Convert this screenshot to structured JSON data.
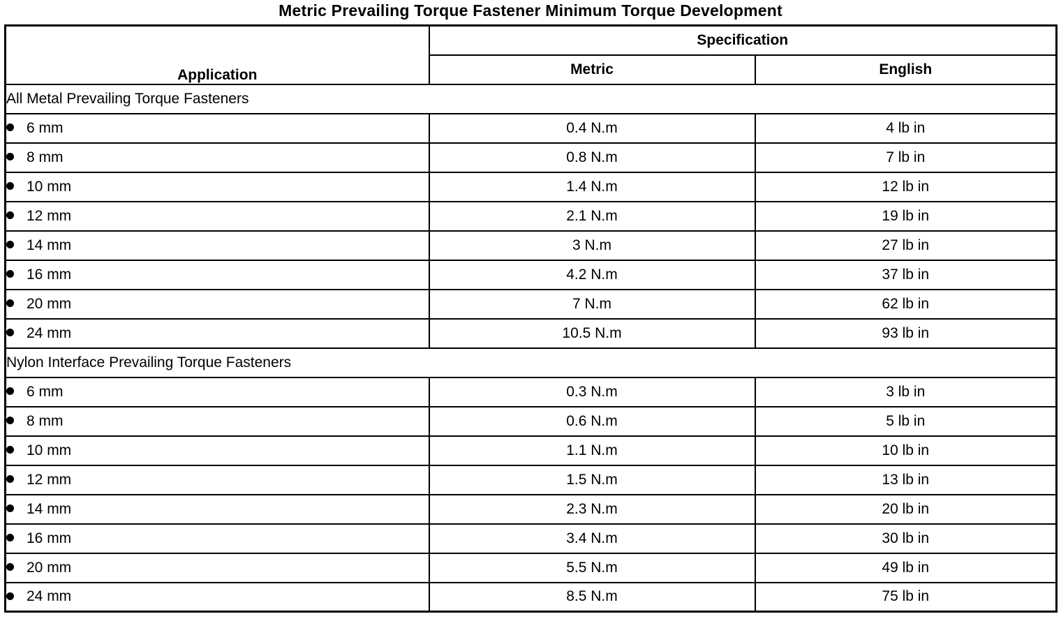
{
  "page": {
    "title": "Metric Prevailing Torque Fastener Minimum Torque Development"
  },
  "table": {
    "headers": {
      "application": "Application",
      "specification": "Specification",
      "metric": "Metric",
      "english": "English"
    },
    "sections": [
      {
        "label": "All Metal Prevailing Torque Fasteners",
        "rows": [
          {
            "application": "6 mm",
            "metric": "0.4 N.m",
            "english": "4 lb in"
          },
          {
            "application": "8 mm",
            "metric": "0.8 N.m",
            "english": "7 lb in"
          },
          {
            "application": "10 mm",
            "metric": "1.4 N.m",
            "english": "12 lb in"
          },
          {
            "application": "12 mm",
            "metric": "2.1 N.m",
            "english": "19 lb in"
          },
          {
            "application": "14 mm",
            "metric": "3 N.m",
            "english": "27 lb in"
          },
          {
            "application": "16 mm",
            "metric": "4.2 N.m",
            "english": "37 lb in"
          },
          {
            "application": "20 mm",
            "metric": "7 N.m",
            "english": "62 lb in"
          },
          {
            "application": "24 mm",
            "metric": "10.5 N.m",
            "english": "93 lb in"
          }
        ]
      },
      {
        "label": "Nylon Interface Prevailing Torque Fasteners",
        "rows": [
          {
            "application": "6 mm",
            "metric": "0.3 N.m",
            "english": "3 lb in"
          },
          {
            "application": "8 mm",
            "metric": "0.6 N.m",
            "english": "5 lb in"
          },
          {
            "application": "10 mm",
            "metric": "1.1 N.m",
            "english": "10 lb in"
          },
          {
            "application": "12 mm",
            "metric": "1.5 N.m",
            "english": "13 lb in"
          },
          {
            "application": "14 mm",
            "metric": "2.3 N.m",
            "english": "20 lb in"
          },
          {
            "application": "16 mm",
            "metric": "3.4 N.m",
            "english": "30 lb in"
          },
          {
            "application": "20 mm",
            "metric": "5.5 N.m",
            "english": "49 lb in"
          },
          {
            "application": "24 mm",
            "metric": "8.5 N.m",
            "english": "75 lb in"
          }
        ]
      }
    ]
  }
}
